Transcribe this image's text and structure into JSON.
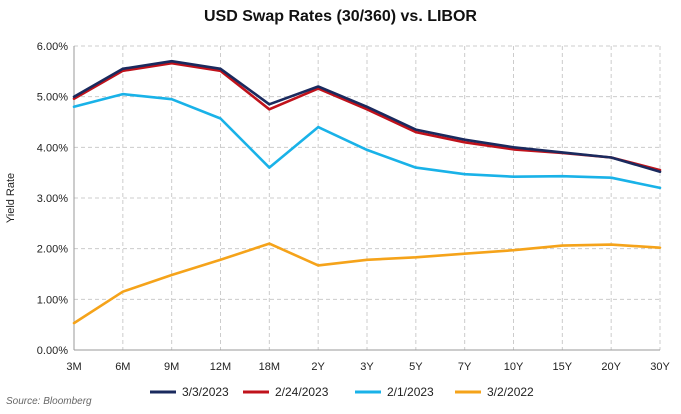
{
  "chart_data": {
    "type": "line",
    "title": "USD Swap Rates (30/360) vs. LIBOR",
    "xlabel": "",
    "ylabel": "Yield Rate",
    "categories": [
      "3M",
      "6M",
      "9M",
      "12M",
      "18M",
      "2Y",
      "3Y",
      "5Y",
      "7Y",
      "10Y",
      "15Y",
      "20Y",
      "30Y"
    ],
    "ylim": [
      0,
      6
    ],
    "yticks": [
      0,
      1,
      2,
      3,
      4,
      5,
      6
    ],
    "ytick_labels": [
      "0.00%",
      "1.00%",
      "2.00%",
      "3.00%",
      "4.00%",
      "5.00%",
      "6.00%"
    ],
    "grid": "dashed",
    "legend_position": "bottom",
    "series": [
      {
        "name": "3/3/2023",
        "color": "#1a2a5e",
        "values": [
          5.0,
          5.55,
          5.7,
          5.55,
          4.85,
          5.2,
          4.8,
          4.35,
          4.15,
          4.0,
          3.9,
          3.8,
          3.52
        ]
      },
      {
        "name": "2/24/2023",
        "color": "#c0121b",
        "values": [
          4.96,
          5.51,
          5.66,
          5.51,
          4.75,
          5.16,
          4.75,
          4.3,
          4.1,
          3.96,
          3.89,
          3.8,
          3.55
        ]
      },
      {
        "name": "2/1/2023",
        "color": "#19b2e8",
        "values": [
          4.8,
          5.05,
          4.95,
          4.57,
          3.6,
          4.4,
          3.95,
          3.6,
          3.47,
          3.42,
          3.43,
          3.4,
          3.2
        ]
      },
      {
        "name": "3/2/2022",
        "color": "#f5a31a",
        "values": [
          0.53,
          1.15,
          1.48,
          1.78,
          2.1,
          1.67,
          1.78,
          1.83,
          1.9,
          1.97,
          2.06,
          2.08,
          2.02
        ]
      }
    ]
  },
  "source": "Source: Bloomberg"
}
